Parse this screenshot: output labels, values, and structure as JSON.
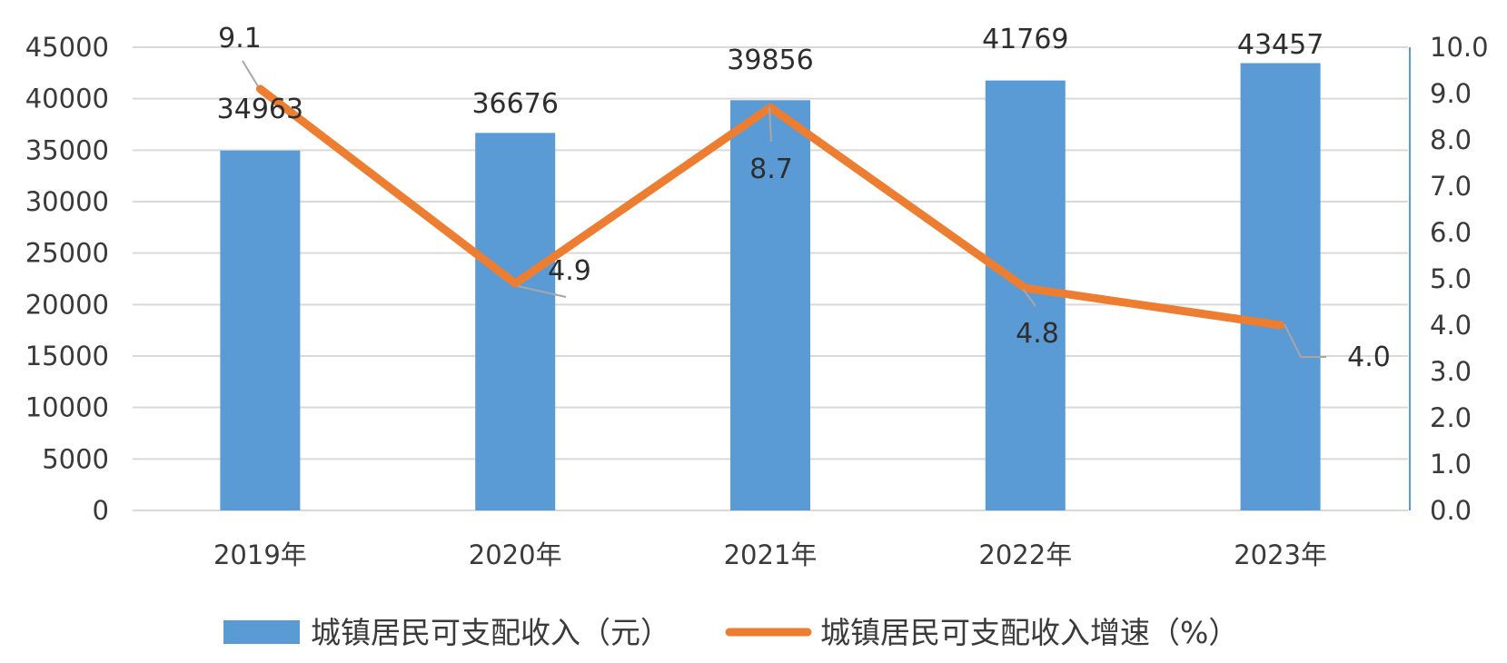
{
  "chart_data": {
    "type": "bar",
    "categories": [
      "2019年",
      "2020年",
      "2021年",
      "2022年",
      "2023年"
    ],
    "series": [
      {
        "name": "城镇居民可支配收入（元）",
        "type": "bar",
        "axis": "left",
        "values": [
          34963,
          36676,
          39856,
          41769,
          43457
        ],
        "color": "#5b9bd5"
      },
      {
        "name": "城镇居民可支配收入增速（%）",
        "type": "line",
        "axis": "right",
        "values": [
          9.1,
          4.9,
          8.7,
          4.8,
          4.0
        ],
        "color": "#ed7d31"
      }
    ],
    "y_left": {
      "min": 0,
      "max": 45000,
      "step": 5000
    },
    "y_right": {
      "min": 0,
      "max": 10,
      "step": 1
    },
    "grid": true,
    "legend_position": "bottom",
    "bar_labels": [
      "34963",
      "36676",
      "39856",
      "41769",
      "43457"
    ],
    "line_labels": [
      "9.1",
      "4.9",
      "8.7",
      "4.8",
      "4.0"
    ],
    "y_left_ticks": [
      "0",
      "5000",
      "10000",
      "15000",
      "20000",
      "25000",
      "30000",
      "35000",
      "40000",
      "45000"
    ],
    "y_right_ticks": [
      "0.0",
      "1.0",
      "2.0",
      "3.0",
      "4.0",
      "5.0",
      "6.0",
      "7.0",
      "8.0",
      "9.0",
      "10.0"
    ]
  }
}
